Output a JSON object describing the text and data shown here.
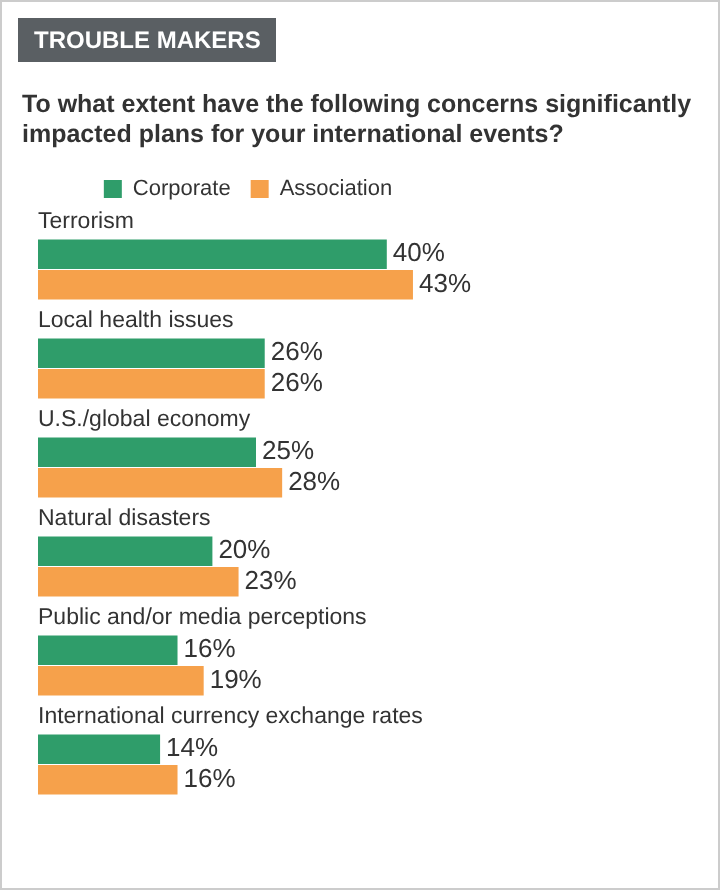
{
  "chart_data": {
    "type": "bar",
    "orientation": "horizontal",
    "title": "TROUBLE MAKERS",
    "subtitle": "To what extent have the following concerns significantly impacted plans for your international events?",
    "categories": [
      "Terrorism",
      "Local health issues",
      "U.S./global economy",
      "Natural disasters",
      "Public and/or media perceptions",
      "International currency exchange rates"
    ],
    "series": [
      {
        "name": "Corporate",
        "color": "#2f9d6a",
        "values": [
          40,
          26,
          25,
          20,
          16,
          14
        ],
        "value_labels": [
          "40%",
          "26%",
          "25%",
          "20%",
          "16%",
          "14%"
        ]
      },
      {
        "name": "Association",
        "color": "#f6a14b",
        "values": [
          43,
          26,
          28,
          23,
          19,
          16
        ],
        "value_labels": [
          "43%",
          "26%",
          "28%",
          "23%",
          "19%",
          "16%"
        ]
      }
    ],
    "legend": "top",
    "grid": false
  }
}
